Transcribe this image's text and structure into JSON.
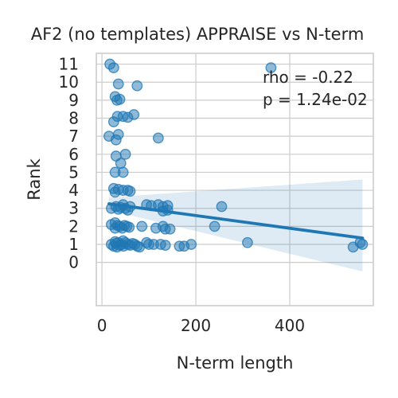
{
  "chart_data": {
    "type": "scatter",
    "title": "AF2 (no templates) APPRAISE vs N-term",
    "xlabel": "N-term length",
    "ylabel": "Rank",
    "xlim": [
      -12,
      578
    ],
    "ylim": [
      -2.4,
      11.6
    ],
    "x_ticks": [
      0,
      200,
      400
    ],
    "y_ticks": [
      0,
      1,
      2,
      3,
      4,
      5,
      6,
      7,
      8,
      9,
      10,
      11
    ],
    "grid": true,
    "colors": {
      "point": "#1f77b4",
      "band": "#1f77b4",
      "grid": "#cccccc",
      "text": "#262626"
    },
    "annotation": {
      "lines": [
        "rho = -0.22",
        "p = 1.24e-02"
      ],
      "position": "top-right"
    },
    "regression": {
      "x": [
        15,
        555
      ],
      "y": [
        3.25,
        1.35
      ],
      "ci_lower": [
        2.9,
        -0.5
      ],
      "ci_upper": [
        3.6,
        4.6
      ]
    },
    "points": [
      [
        17,
        11
      ],
      [
        25,
        10.8
      ],
      [
        35,
        9.9
      ],
      [
        75,
        9.8
      ],
      [
        360,
        10.8
      ],
      [
        28,
        9.2
      ],
      [
        32,
        9.0
      ],
      [
        38,
        9.05
      ],
      [
        25,
        7.8
      ],
      [
        33,
        8.1
      ],
      [
        45,
        8.1
      ],
      [
        55,
        8.05
      ],
      [
        68,
        8.2
      ],
      [
        15,
        7.0
      ],
      [
        30,
        6.8
      ],
      [
        35,
        7.1
      ],
      [
        120,
        6.9
      ],
      [
        30,
        5.9
      ],
      [
        50,
        6.0
      ],
      [
        28,
        5.0
      ],
      [
        45,
        5.0
      ],
      [
        40,
        5.5
      ],
      [
        25,
        4.1
      ],
      [
        35,
        4.05
      ],
      [
        45,
        4.0
      ],
      [
        55,
        4.0
      ],
      [
        60,
        3.95
      ],
      [
        28,
        3.9
      ],
      [
        20,
        3.0
      ],
      [
        30,
        3.1
      ],
      [
        35,
        2.95
      ],
      [
        40,
        3.05
      ],
      [
        45,
        3.2
      ],
      [
        50,
        3.0
      ],
      [
        55,
        2.9
      ],
      [
        60,
        3.1
      ],
      [
        95,
        3.2
      ],
      [
        105,
        3.15
      ],
      [
        120,
        3.2
      ],
      [
        130,
        3.1
      ],
      [
        140,
        3.15
      ],
      [
        130,
        2.85
      ],
      [
        140,
        2.9
      ],
      [
        255,
        3.1
      ],
      [
        20,
        2.1
      ],
      [
        28,
        1.9
      ],
      [
        33,
        2.05
      ],
      [
        38,
        2.0
      ],
      [
        43,
        1.9
      ],
      [
        48,
        2.05
      ],
      [
        53,
        2.0
      ],
      [
        58,
        1.95
      ],
      [
        28,
        2.2
      ],
      [
        85,
        2.0
      ],
      [
        115,
        1.9
      ],
      [
        130,
        2.0
      ],
      [
        135,
        1.85
      ],
      [
        145,
        1.85
      ],
      [
        240,
        2.0
      ],
      [
        20,
        1.0
      ],
      [
        25,
        0.9
      ],
      [
        30,
        1.05
      ],
      [
        35,
        1.1
      ],
      [
        38,
        0.95
      ],
      [
        42,
        1.0
      ],
      [
        46,
        0.9
      ],
      [
        50,
        1.1
      ],
      [
        55,
        1.0
      ],
      [
        60,
        0.95
      ],
      [
        65,
        1.05
      ],
      [
        70,
        1.0
      ],
      [
        75,
        0.9
      ],
      [
        32,
        0.85
      ],
      [
        45,
        1.2
      ],
      [
        28,
        1.15
      ],
      [
        110,
        1.0
      ],
      [
        125,
        1.0
      ],
      [
        135,
        0.95
      ],
      [
        165,
        0.9
      ],
      [
        175,
        0.9
      ],
      [
        190,
        1.0
      ],
      [
        310,
        1.1
      ],
      [
        535,
        0.85
      ],
      [
        550,
        1.1
      ],
      [
        555,
        1.0
      ],
      [
        80,
        0.85
      ],
      [
        95,
        1.1
      ],
      [
        100,
        1.0
      ]
    ]
  }
}
